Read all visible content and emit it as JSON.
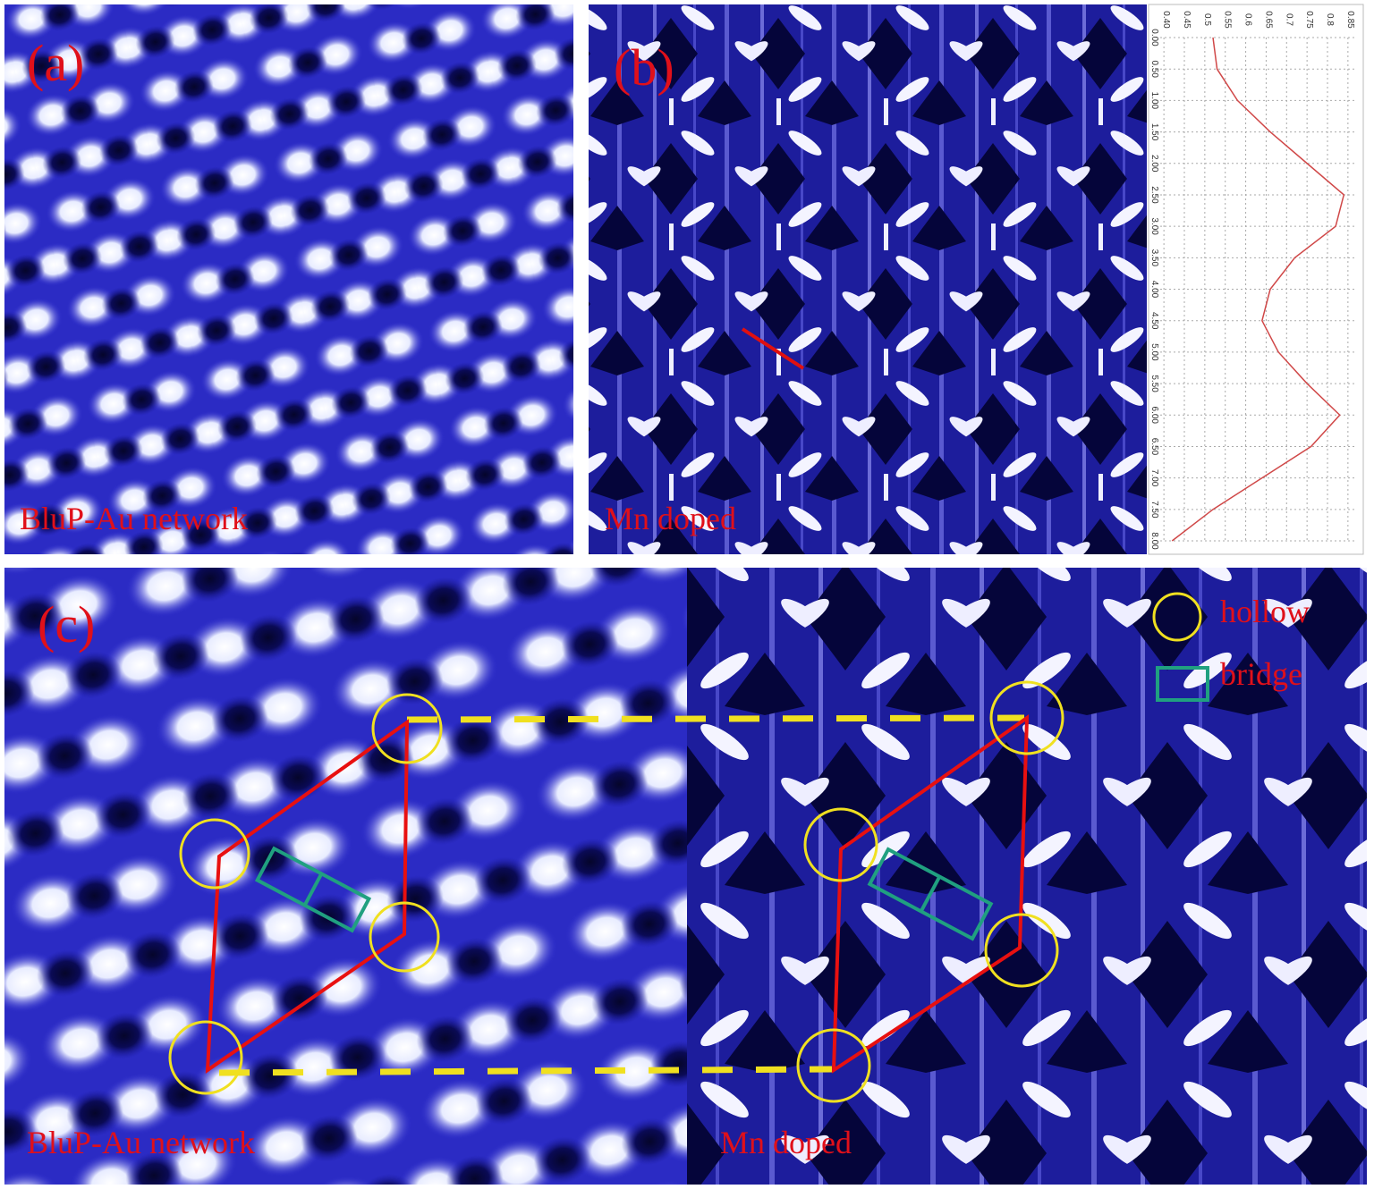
{
  "panels": {
    "a": {
      "label": "(a)",
      "caption": "BluP-Au network"
    },
    "b": {
      "label": "(b)",
      "caption": "Mn doped"
    },
    "c": {
      "label": "(c)",
      "left_caption": "BluP-Au network",
      "right_caption": "Mn doped",
      "legend": {
        "hollow": "hollow",
        "bridge": "bridge"
      }
    }
  },
  "chart_data": {
    "type": "line",
    "x": [
      0,
      0.5,
      1,
      1.5,
      2,
      2.5,
      3,
      3.5,
      4,
      4.5,
      5,
      5.5,
      6,
      6.5,
      7,
      7.5,
      8
    ],
    "series": [
      {
        "color": "#d04848",
        "values": [
          0.52,
          0.53,
          0.58,
          0.66,
          0.75,
          0.84,
          0.82,
          0.72,
          0.66,
          0.64,
          0.68,
          0.75,
          0.83,
          0.76,
          0.64,
          0.52,
          0.42
        ]
      }
    ],
    "xlim": [
      0,
      8
    ],
    "xticks": [
      {
        "value": 0,
        "label": "0.00"
      },
      {
        "value": 0.5,
        "label": "0.50"
      },
      {
        "value": 1,
        "label": "1.00"
      },
      {
        "value": 1.5,
        "label": "1.50"
      },
      {
        "value": 2,
        "label": "2.00"
      },
      {
        "value": 2.5,
        "label": "2.50"
      },
      {
        "value": 3,
        "label": "3.00"
      },
      {
        "value": 3.5,
        "label": "3.50"
      },
      {
        "value": 4,
        "label": "4.00"
      },
      {
        "value": 4.5,
        "label": "4.50"
      },
      {
        "value": 5,
        "label": "5.00"
      },
      {
        "value": 5.5,
        "label": "5.50"
      },
      {
        "value": 6,
        "label": "6.00"
      },
      {
        "value": 6.5,
        "label": "6.50"
      },
      {
        "value": 7,
        "label": "7.00"
      },
      {
        "value": 7.5,
        "label": "7.50"
      },
      {
        "value": 8,
        "label": "8.00"
      }
    ],
    "ylim": [
      0.38,
      0.87
    ],
    "yticks": [
      {
        "value": 0.4,
        "label": "0.40"
      },
      0.45,
      0.5,
      0.55,
      0.6,
      0.65,
      0.7,
      0.75,
      0.8,
      0.85
    ],
    "grid": true
  }
}
